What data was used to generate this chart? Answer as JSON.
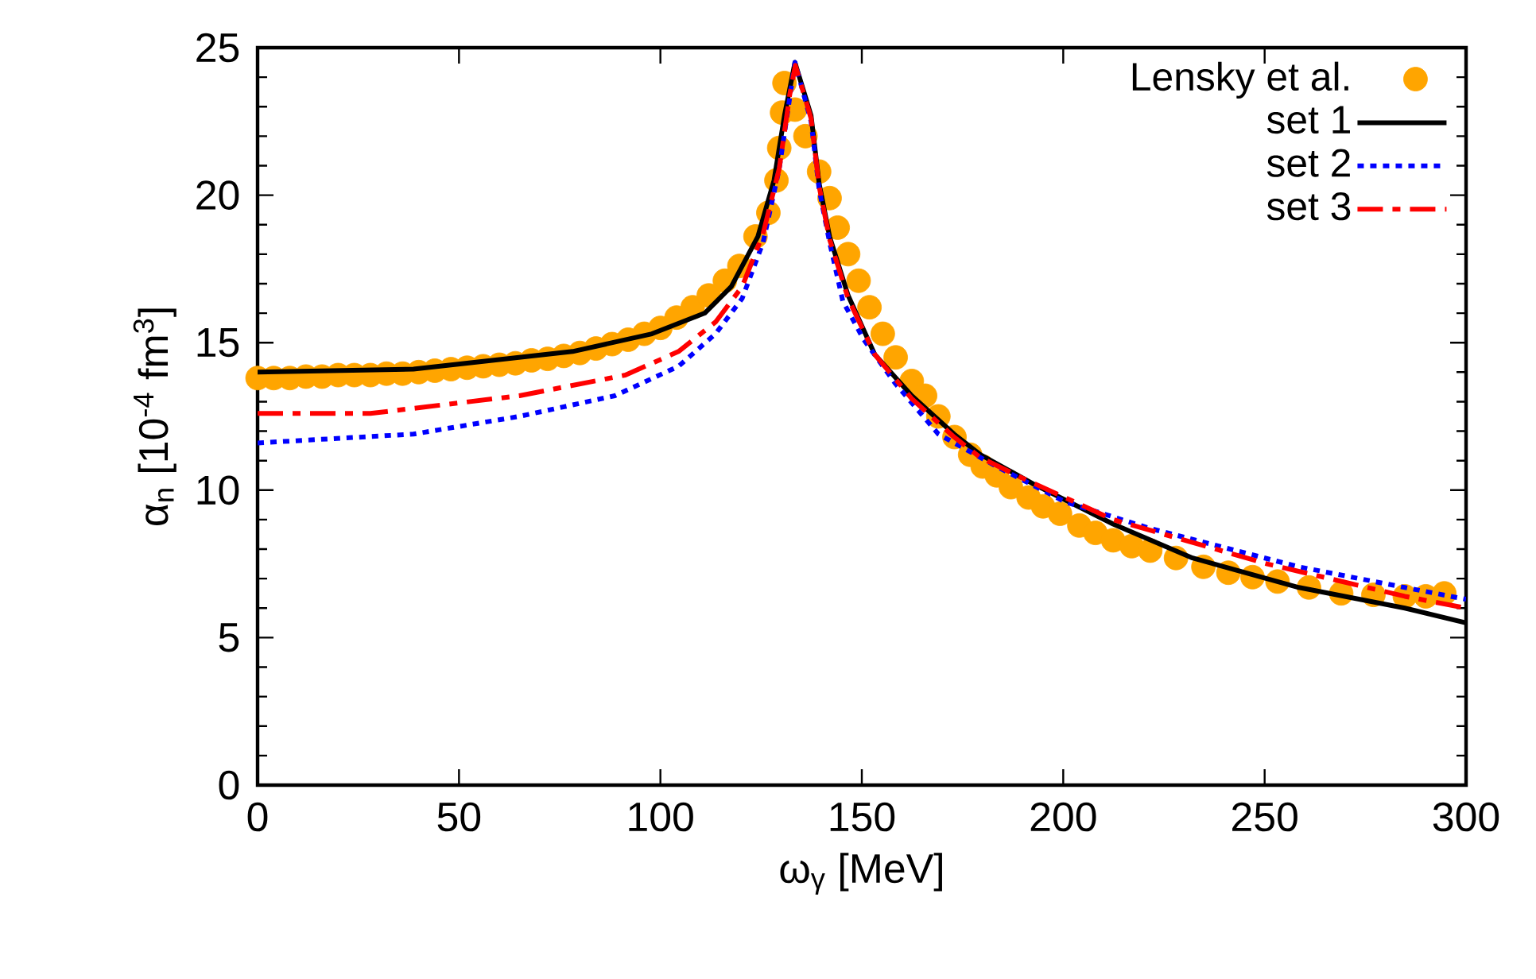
{
  "chart_data": {
    "type": "line",
    "xlabel": "ω$_{γ}$ [MeV]",
    "ylabel": "α$_{n}$ [10$^{-4}$ fm$^{3}$]",
    "xlim": [
      0,
      300
    ],
    "ylim": [
      0,
      25
    ],
    "xticks": [
      0,
      50,
      100,
      150,
      200,
      250,
      300
    ],
    "yticks": [
      0,
      5,
      10,
      15,
      20,
      25
    ],
    "legend": "top right",
    "grid": false,
    "series": [
      {
        "name": "Lensky et al.",
        "type": "scatter",
        "marker": "circle",
        "color": "#ffa500",
        "x": [
          0,
          4,
          8,
          12,
          16,
          20,
          24,
          28,
          32,
          36,
          40,
          44,
          48,
          52,
          56,
          60,
          64,
          68,
          72,
          76,
          80,
          84,
          88,
          92,
          96,
          100,
          104,
          108,
          112,
          116,
          119.6,
          123.6,
          126.8,
          128.8,
          129.5,
          130.2,
          130.8,
          133.4,
          136,
          139.4,
          142,
          144,
          146.6,
          149.2,
          151.9,
          155.2,
          158.4,
          162.4,
          165.7,
          169,
          173,
          176.9,
          180,
          183.5,
          187,
          191.4,
          195,
          199.2,
          204,
          208,
          212.4,
          217,
          221.6,
          228,
          234.8,
          241,
          247,
          253.2,
          261,
          269,
          277,
          284.8,
          290,
          294.6
        ],
        "values": [
          13.8,
          13.8,
          13.8,
          13.85,
          13.85,
          13.9,
          13.9,
          13.9,
          13.95,
          13.95,
          14.0,
          14.05,
          14.1,
          14.15,
          14.2,
          14.25,
          14.3,
          14.4,
          14.45,
          14.55,
          14.65,
          14.8,
          14.95,
          15.1,
          15.3,
          15.5,
          15.85,
          16.2,
          16.6,
          17.1,
          17.6,
          18.6,
          19.4,
          20.5,
          21.6,
          22.8,
          23.8,
          22.9,
          22.0,
          20.8,
          19.9,
          18.9,
          18.0,
          17.1,
          16.2,
          15.3,
          14.5,
          13.7,
          13.2,
          12.5,
          11.8,
          11.2,
          10.8,
          10.5,
          10.1,
          9.75,
          9.45,
          9.2,
          8.8,
          8.55,
          8.3,
          8.1,
          7.95,
          7.7,
          7.4,
          7.2,
          7.05,
          6.9,
          6.7,
          6.5,
          6.45,
          6.4,
          6.4,
          6.5
        ]
      },
      {
        "name": "set 1",
        "line_style": "solid",
        "color": "#000000",
        "x": [
          0,
          38.7,
          78.2,
          97.9,
          111,
          117.6,
          124.2,
          128.2,
          130.8,
          133.4,
          137.4,
          139.4,
          142,
          146.6,
          153.2,
          162.4,
          172.9,
          179.5,
          192.7,
          212.4,
          232.1,
          258.5,
          284.8,
          300
        ],
        "values": [
          14.0,
          14.1,
          14.7,
          15.3,
          16.0,
          16.9,
          18.6,
          20.5,
          22.7,
          24.5,
          22.7,
          20.4,
          18.6,
          16.6,
          14.6,
          13.2,
          11.9,
          11.2,
          10.2,
          8.85,
          7.7,
          6.7,
          6.0,
          5.5
        ]
      },
      {
        "name": "set 2",
        "line_style": "dotted",
        "color": "#0000ff",
        "x": [
          0,
          38.7,
          65,
          88.7,
          104.5,
          113.7,
          120.3,
          125.5,
          129.5,
          133.4,
          137.4,
          139.4,
          142,
          145.3,
          150.5,
          158.4,
          169,
          183.5,
          200.5,
          221.6,
          258.5,
          284.8,
          300
        ],
        "values": [
          11.6,
          11.9,
          12.5,
          13.2,
          14.2,
          15.3,
          16.5,
          18.4,
          20.9,
          24.5,
          22.5,
          20.2,
          18.4,
          16.4,
          15.1,
          13.6,
          11.9,
          10.8,
          9.6,
          8.7,
          7.4,
          6.7,
          6.3
        ]
      },
      {
        "name": "set 3",
        "line_style": "dashdot",
        "color": "#ff0000",
        "x": [
          0,
          28,
          65,
          91.3,
          104.5,
          113.7,
          120.3,
          125.5,
          129.5,
          132.1,
          133.5,
          137.4,
          139.4,
          142,
          146.6,
          153.2,
          162.4,
          172.9,
          179.5,
          190,
          212.4,
          250.6,
          284.8,
          300
        ],
        "values": [
          12.6,
          12.6,
          13.2,
          13.9,
          14.7,
          15.7,
          16.9,
          18.7,
          20.9,
          23.4,
          24.4,
          22.6,
          20.3,
          18.5,
          16.5,
          14.6,
          13.1,
          11.8,
          11.1,
          10.4,
          9.0,
          7.5,
          6.4,
          6.0
        ]
      }
    ]
  }
}
